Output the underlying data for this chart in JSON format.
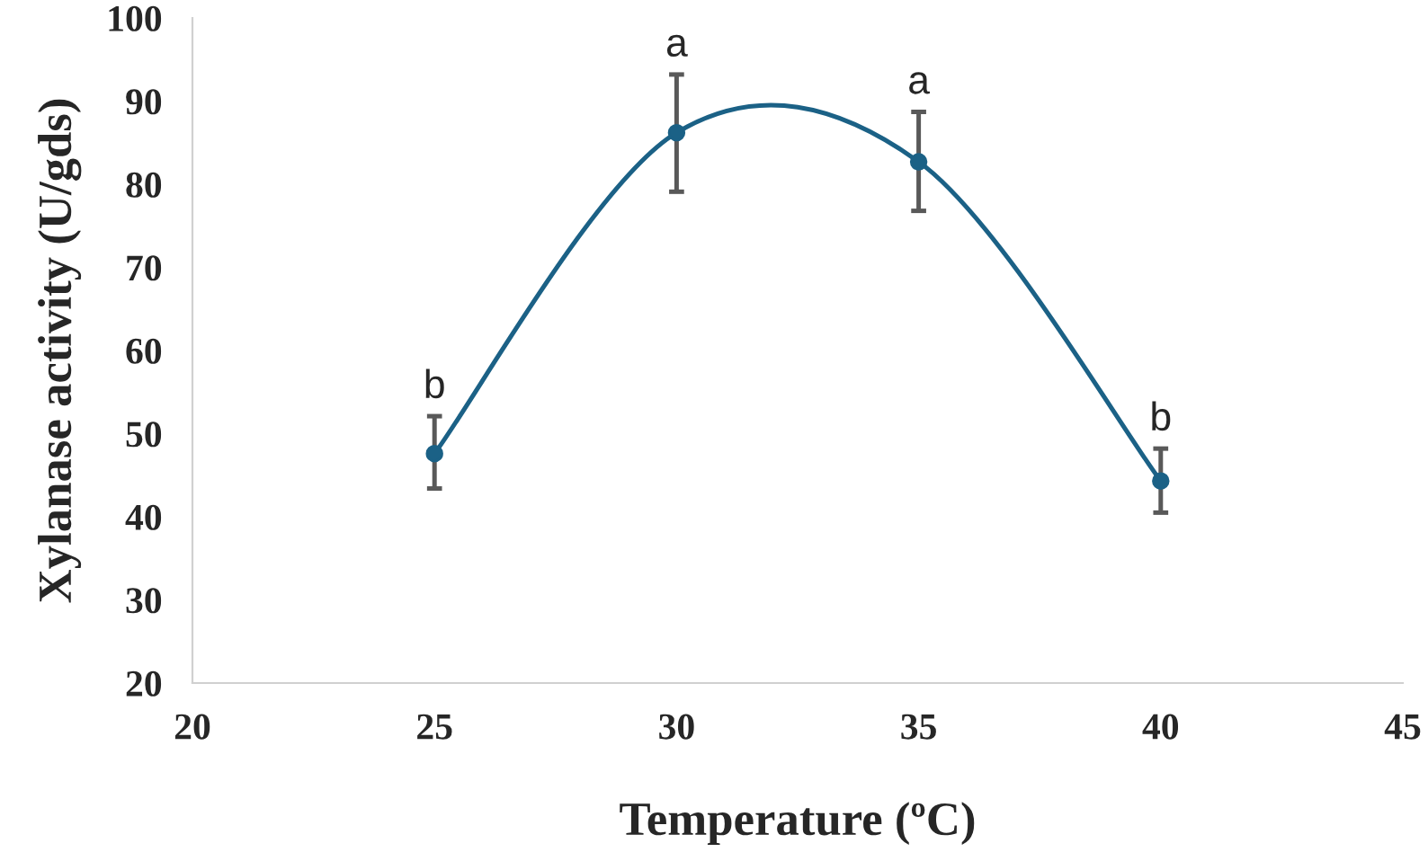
{
  "chart_data": {
    "type": "line",
    "xlabel": "Temperature (ºC)",
    "ylabel": "Xylanase activity (U/gds)",
    "x": [
      25,
      30,
      35,
      40
    ],
    "series": [
      {
        "color": "#1b6186",
        "values": [
          47.6,
          86.2,
          82.7,
          44.3
        ],
        "errors": [
          [
            43.4,
            52.1
          ],
          [
            79.1,
            93.2
          ],
          [
            76.8,
            88.7
          ],
          [
            40.5,
            48.2
          ]
        ]
      }
    ],
    "xlim": [
      20,
      45
    ],
    "xticks": [
      20,
      25,
      30,
      35,
      40,
      45
    ],
    "ylim": [
      20,
      100
    ],
    "yticks": [
      20,
      30,
      40,
      50,
      60,
      70,
      80,
      90,
      100
    ],
    "grid": false,
    "legend": false,
    "marker": "circle",
    "line_style": "solid",
    "annotations": [
      {
        "text": "b",
        "x": 25,
        "y": 47.6
      },
      {
        "text": "a",
        "x": 30,
        "y": 86.2
      },
      {
        "text": "a",
        "x": 35,
        "y": 82.7
      },
      {
        "text": "b",
        "x": 40,
        "y": 44.3
      }
    ]
  }
}
